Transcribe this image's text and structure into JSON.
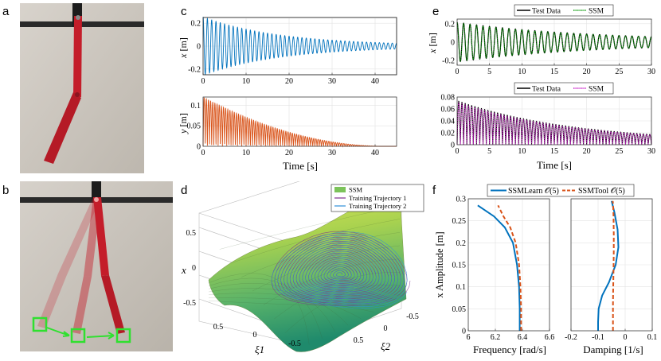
{
  "panel_labels": {
    "a": "a",
    "b": "b",
    "c": "c",
    "d": "d",
    "e": "e",
    "f": "f"
  },
  "colors": {
    "blue": "#0072BD",
    "orange": "#D95319",
    "green": "#0a9a0a",
    "magenta": "#C71FC7",
    "photo_red": "#c41d2a",
    "marker_green": "#2fe02f"
  },
  "chart_data": [
    {
      "id": "c-top",
      "type": "line",
      "ylabel_var": "x",
      "ylabel_unit": "[m]",
      "xlim": [
        0,
        45
      ],
      "ylim": [
        -0.25,
        0.25
      ],
      "xticks": [
        "0",
        "10",
        "20",
        "30",
        "40"
      ],
      "yticks": [
        "-0.2",
        "0",
        "0.2"
      ],
      "series": [
        {
          "name": "x",
          "description": "damped oscillation, amplitude 0.25 -> ~0.02 over 45 s"
        }
      ]
    },
    {
      "id": "c-bottom",
      "type": "line",
      "ylabel_var": "y",
      "ylabel_unit": "[m]",
      "xlabel": "Time [s]",
      "xlim": [
        0,
        45
      ],
      "ylim": [
        0,
        0.12
      ],
      "xticks": [
        "0",
        "10",
        "20",
        "30",
        "40"
      ],
      "yticks": [
        "0",
        "0.05",
        "0.1"
      ],
      "series": [
        {
          "name": "y",
          "description": "rectified decaying oscillation, peak 0.12 -> 0 near 40 s"
        }
      ]
    },
    {
      "id": "e-top",
      "type": "line",
      "ylabel_var": "x",
      "ylabel_unit": "[m]",
      "xlim": [
        0,
        30
      ],
      "ylim": [
        -0.25,
        0.25
      ],
      "xticks": [
        "0",
        "5",
        "10",
        "15",
        "20",
        "25",
        "30"
      ],
      "yticks": [
        "-0.2",
        "0",
        "0.2"
      ],
      "legend": [
        "Test Data",
        "SSM"
      ],
      "series": [
        {
          "name": "Test Data"
        },
        {
          "name": "SSM"
        }
      ]
    },
    {
      "id": "e-bottom",
      "type": "line",
      "xlabel": "Time [s]",
      "xlim": [
        0,
        30
      ],
      "ylim": [
        0,
        0.08
      ],
      "xticks": [
        "0",
        "5",
        "10",
        "15",
        "20",
        "25",
        "30"
      ],
      "yticks": [
        "0",
        "0.02",
        "0.04",
        "0.06",
        "0.08"
      ],
      "legend": [
        "Test Data",
        "SSM"
      ],
      "series": [
        {
          "name": "Test Data"
        },
        {
          "name": "SSM"
        }
      ]
    },
    {
      "id": "d",
      "type": "scatter",
      "zlabel": "x",
      "xlabel": "ξ1",
      "ylabel": "ξ2",
      "zticks": [
        "0.5",
        "0",
        "-0.5"
      ],
      "xi1ticks": [
        "0.5",
        "0",
        "-0.5"
      ],
      "xi2ticks": [
        "-0.5",
        "0",
        "0.5"
      ],
      "legend": [
        "SSM",
        "Training Trajectory 1",
        "Training Trajectory 2"
      ]
    },
    {
      "id": "f-left",
      "type": "line",
      "ylabel": "x Amplitude [m]",
      "xlabel": "Frequency [rad/s]",
      "xlim": [
        6,
        6.6
      ],
      "ylim": [
        0,
        0.3
      ],
      "xticks": [
        "6",
        "6.2",
        "6.4",
        "6.6"
      ],
      "yticks": [
        "0",
        "0.05",
        "0.1",
        "0.15",
        "0.2",
        "0.25",
        "0.3"
      ],
      "legend": [
        "SSMLearn 𝒪(5)",
        "SSMTool 𝒪(5)"
      ],
      "series": [
        {
          "name": "SSMLearn 𝒪(5)",
          "x": [
            6.38,
            6.38,
            6.375,
            6.36,
            6.33,
            6.27,
            6.19,
            6.07
          ],
          "y": [
            0,
            0.05,
            0.1,
            0.15,
            0.2,
            0.235,
            0.26,
            0.285
          ]
        },
        {
          "name": "SSMTool 𝒪(5)",
          "x": [
            6.39,
            6.39,
            6.385,
            6.375,
            6.35,
            6.31,
            6.26,
            6.22
          ],
          "y": [
            0,
            0.05,
            0.1,
            0.15,
            0.2,
            0.235,
            0.26,
            0.285
          ]
        }
      ]
    },
    {
      "id": "f-right",
      "type": "line",
      "xlabel": "Damping [1/s]",
      "xlim": [
        -0.2,
        0.1
      ],
      "ylim": [
        0,
        0.3
      ],
      "xticks": [
        "-0.2",
        "-0.1",
        "0",
        "0.1"
      ],
      "yticks": [],
      "series": [
        {
          "name": "SSMLearn 𝒪(5)",
          "x": [
            -0.1,
            -0.1,
            -0.098,
            -0.085,
            -0.06,
            -0.035,
            -0.025,
            -0.028,
            -0.04,
            -0.05
          ],
          "y": [
            0,
            0.02,
            0.05,
            0.08,
            0.11,
            0.15,
            0.19,
            0.23,
            0.27,
            0.295
          ]
        },
        {
          "name": "SSMTool 𝒪(5)",
          "x": [
            -0.045,
            -0.045,
            -0.045,
            -0.044,
            -0.043,
            -0.042,
            -0.042,
            -0.043,
            -0.045,
            -0.046
          ],
          "y": [
            0,
            0.03,
            0.06,
            0.1,
            0.14,
            0.18,
            0.22,
            0.26,
            0.29,
            0.295
          ]
        }
      ]
    }
  ]
}
